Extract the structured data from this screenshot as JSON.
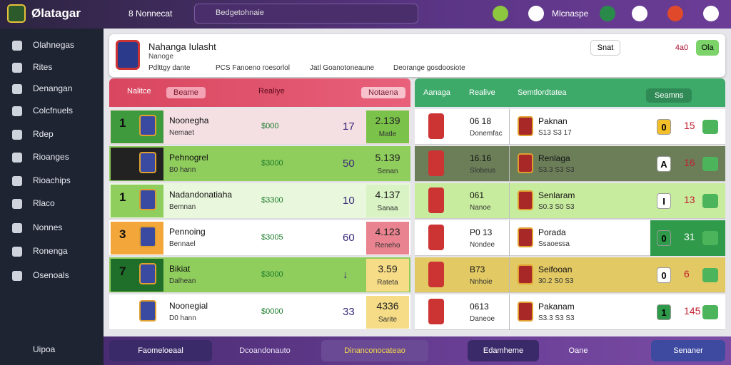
{
  "topbar": {
    "logo": "Ølatagar",
    "nav": "8 Nonnecat",
    "search": "Bedgetohnaie",
    "user": "Mlcnaspe"
  },
  "sidebar": {
    "items": [
      "Olahnegas",
      "Rites",
      "Denangan",
      "Colcfnuels",
      "Rdep",
      "Rioanges",
      "Rioachips",
      "Rlaco",
      "Nonnes",
      "Ronenga",
      "Osenoals"
    ],
    "footer": "Uipoa"
  },
  "header": {
    "title": "Nahanga Iulasht",
    "subtitle": "Nanoge",
    "meta": [
      "Pdlttgy dante",
      "PCS Fanoeno roesorlol",
      "Jatl Goanotoneaune",
      "Deorange gosdoosiote"
    ],
    "buttons": [
      "Snat",
      "4a0",
      "Ola"
    ]
  },
  "left_panel": {
    "tabs": [
      "Nalitce",
      "Beame",
      "Realiye",
      "Notaena"
    ],
    "rows": [
      {
        "rank": "1",
        "name": "Noonegha",
        "sub": "Nemaet",
        "price": "$000",
        "stat": "17",
        "score": "2.139",
        "score_sub": "Matle"
      },
      {
        "name": "Pehnogrel",
        "sub": "B0 hann",
        "price": "$3000",
        "stat": "50",
        "score": "5.139",
        "score_sub": "Senan"
      },
      {
        "rank": "1",
        "name": "Nadandonatiaha",
        "sub": "Bemnan",
        "price": "$3300",
        "stat": "10",
        "score": "4.137",
        "score_sub": "Sanaa"
      },
      {
        "rank": "3",
        "name": "Pennoing",
        "sub": "Bennael",
        "price": "$3005",
        "stat": "60",
        "score": "4.123",
        "score_sub": "Reneho"
      },
      {
        "rank": "7",
        "name": "Bikiat",
        "sub": "Dalhean",
        "price": "$3000",
        "stat": "↓",
        "score": "3.59",
        "score_sub": "Rateta"
      },
      {
        "name": "Noonegial",
        "sub": "D0 hann",
        "price": "$0000",
        "stat": "33",
        "score": "4336",
        "score_sub": "Sarite"
      }
    ]
  },
  "right_panel": {
    "tabs": [
      "Aanaga",
      "Realive",
      "Semtlordtatea",
      "Seamns"
    ],
    "rows": [
      {
        "time": "06 18",
        "time_sub": "Donemfac",
        "team": "Paknan",
        "team_sub": "S13 S3 17",
        "pill": "0",
        "value": "15"
      },
      {
        "time": "16.16",
        "time_sub": "Slobeus",
        "team": "Renlaga",
        "team_sub": "S3.3 S3 S3",
        "pill": "A",
        "value": "16"
      },
      {
        "time": "061",
        "time_sub": "Nanoe",
        "team": "Senlaram",
        "team_sub": "S0.3 S0 S3",
        "pill": "I",
        "value": "13"
      },
      {
        "time": "P0 13",
        "time_sub": "Nondee",
        "team": "Porada",
        "team_sub": "Ssaoessa",
        "pill": "0",
        "value": "31"
      },
      {
        "time": "B73",
        "time_sub": "Nnhoie",
        "team": "Seifooan",
        "team_sub": "30.2 S0 S3",
        "pill": "0",
        "value": "6"
      },
      {
        "time": "0613",
        "time_sub": "Daneoe",
        "team": "Pakanam",
        "team_sub": "S3.3 S3 S3",
        "pill": "1",
        "value": "145"
      }
    ]
  },
  "bottombar": [
    "Faomeloeaal",
    "Dcoandonauto",
    "Dinanconocateao",
    "Edamheme",
    "Oane",
    "Senaner"
  ]
}
